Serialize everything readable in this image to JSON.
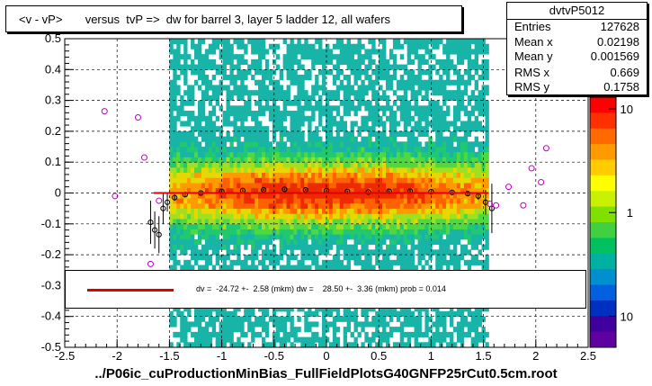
{
  "title": "<v - vP>       versus  tvP =>  dw for barrel 3, layer 5 ladder 12, all wafers",
  "stats": {
    "name": "dvtvP5012",
    "rows": [
      {
        "label": "Entries",
        "value": "127628"
      },
      {
        "label": "Mean x",
        "value": "0.02198"
      },
      {
        "label": "Mean y",
        "value": "0.001569"
      },
      {
        "label": "RMS x",
        "value": "0.669"
      },
      {
        "label": "RMS y",
        "value": "0.1758"
      }
    ]
  },
  "fit_text": "dv =  -24.72 +-  2.58 (mkm) dw =    28.50 +-  3.36 (mkm) prob = 0.014",
  "footer": "../P06ic_cuProductionMinBias_FullFieldPlotsG40GNFP25rCut0.5cm.root",
  "colors": {
    "fit": "#e00000",
    "frame": "#000000",
    "grid": "#000000"
  },
  "chart_data": {
    "type": "heatmap",
    "title": "<v - vP>       versus  tvP =>  dw for barrel 3, layer 5 ladder 12, all wafers",
    "xlim": [
      -2.5,
      2.5
    ],
    "ylim": [
      -0.5,
      0.5
    ],
    "x_ticks": [
      "-2.5",
      "-2",
      "-1.5",
      "-1",
      "-0.5",
      "0",
      "0.5",
      "1",
      "1.5",
      "2",
      "2.5"
    ],
    "y_ticks": [
      "-0.5",
      "-0.4",
      "-0.3",
      "-0.2",
      "-0.1",
      "0",
      "0.1",
      "0.2",
      "0.3",
      "0.4",
      "0.5"
    ],
    "grid": true,
    "z_scale": "log",
    "z_ticks": [
      "10",
      "1",
      "10"
    ],
    "z_tick_values": [
      10,
      1,
      0.1
    ],
    "filled_x_range": [
      -1.5,
      1.55
    ],
    "profile_points": [
      {
        "x": -1.68,
        "y": -0.095,
        "err": 0.07
      },
      {
        "x": -1.64,
        "y": -0.12,
        "err": 0.06
      },
      {
        "x": -1.6,
        "y": -0.135,
        "err": 0.06
      },
      {
        "x": -1.56,
        "y": -0.05,
        "err": 0.05
      },
      {
        "x": -1.52,
        "y": -0.03,
        "err": 0.03
      },
      {
        "x": -1.45,
        "y": -0.015,
        "err": 0.01
      },
      {
        "x": -1.35,
        "y": -0.005,
        "err": 0.006
      },
      {
        "x": -1.2,
        "y": 0.0,
        "err": 0.005
      },
      {
        "x": -1.0,
        "y": 0.005,
        "err": 0.004
      },
      {
        "x": -0.8,
        "y": 0.008,
        "err": 0.004
      },
      {
        "x": -0.6,
        "y": 0.01,
        "err": 0.003
      },
      {
        "x": -0.4,
        "y": 0.012,
        "err": 0.003
      },
      {
        "x": -0.2,
        "y": 0.01,
        "err": 0.003
      },
      {
        "x": 0.0,
        "y": 0.008,
        "err": 0.003
      },
      {
        "x": 0.2,
        "y": 0.005,
        "err": 0.003
      },
      {
        "x": 0.4,
        "y": 0.003,
        "err": 0.003
      },
      {
        "x": 0.6,
        "y": 0.005,
        "err": 0.003
      },
      {
        "x": 0.8,
        "y": 0.006,
        "err": 0.004
      },
      {
        "x": 1.0,
        "y": 0.004,
        "err": 0.004
      },
      {
        "x": 1.2,
        "y": 0.002,
        "err": 0.005
      },
      {
        "x": 1.35,
        "y": -0.002,
        "err": 0.007
      },
      {
        "x": 1.45,
        "y": -0.01,
        "err": 0.012
      },
      {
        "x": 1.52,
        "y": -0.03,
        "err": 0.04
      },
      {
        "x": 1.58,
        "y": -0.05,
        "err": 0.08
      }
    ],
    "outliers": [
      {
        "x": -2.12,
        "y": 0.265
      },
      {
        "x": -2.02,
        "y": -0.01
      },
      {
        "x": -1.8,
        "y": 0.245
      },
      {
        "x": -1.74,
        "y": 0.115
      },
      {
        "x": -1.68,
        "y": -0.23
      },
      {
        "x": -1.6,
        "y": -0.025
      },
      {
        "x": 1.56,
        "y": -0.035
      },
      {
        "x": 1.62,
        "y": -0.04
      },
      {
        "x": 1.74,
        "y": 0.02
      },
      {
        "x": 1.88,
        "y": -0.04
      },
      {
        "x": 1.96,
        "y": 0.08
      },
      {
        "x": 2.05,
        "y": 0.035
      },
      {
        "x": 2.1,
        "y": 0.145
      }
    ],
    "fit_line": {
      "x": [
        -1.65,
        1.55
      ],
      "y": [
        0.0,
        0.0
      ]
    }
  }
}
